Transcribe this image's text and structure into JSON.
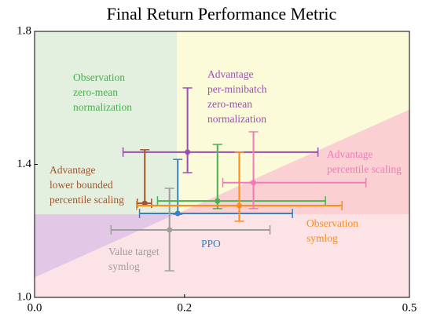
{
  "chart_data": {
    "type": "errorbar_scatter",
    "title": "Final Return Performance Metric",
    "xlim": [
      0,
      0.5
    ],
    "ylim": [
      1.0,
      1.8
    ],
    "xticks": [
      {
        "value": 0,
        "label": "0.0"
      },
      0.2,
      0.5
    ],
    "yticks": [
      {
        "value": 1,
        "label": "1.0"
      },
      1.4,
      1.8
    ],
    "regions": {
      "x_threshold": 0.19,
      "y_threshold": 1.25,
      "diagonal": [
        [
          0,
          1.06
        ],
        [
          0.5,
          1.565
        ]
      ],
      "colors": {
        "upper_left": "#e3efdf",
        "upper_right": "#fbfbd9",
        "lower_right": "#fbd0d3",
        "lower_left": "#e2c8e6",
        "bottom": "#fce3e5"
      }
    },
    "series": [
      {
        "name": [
          "Advantage",
          "per-minibatch",
          "zero-mean",
          "normalization"
        ],
        "color": "#9b4fb0",
        "x": 0.204,
        "y": 1.437,
        "x_low": 0.118,
        "x_high": 0.378,
        "y_low": 1.375,
        "y_high": 1.63
      },
      {
        "name": [
          "Advantage",
          "lower bounded",
          "percentile scaling"
        ],
        "color": "#a0562c",
        "x": 0.147,
        "y": 1.283,
        "x_low": 0.137,
        "x_high": 0.156,
        "y_low": 1.283,
        "y_high": 1.444
      },
      {
        "name": [
          "PPO"
        ],
        "color": "#3a7fc1",
        "x": 0.191,
        "y": 1.2525,
        "x_low": 0.14,
        "x_high": 0.344,
        "y_low": 1.25,
        "y_high": 1.415
      },
      {
        "name": [
          "Value target",
          "symlog"
        ],
        "color": "#9e9e9e",
        "x": 0.18,
        "y": 1.203,
        "x_low": 0.102,
        "x_high": 0.314,
        "y_low": 1.08,
        "y_high": 1.328
      },
      {
        "name": [
          "Observation",
          "zero-mean",
          "normalization"
        ],
        "color": "#4caf50",
        "x": 0.244,
        "y": 1.29,
        "x_low": 0.164,
        "x_high": 0.388,
        "y_low": 1.267,
        "y_high": 1.46
      },
      {
        "name": [
          "Observation",
          "symlog"
        ],
        "color": "#ff8c1a",
        "x": 0.273,
        "y": 1.276,
        "x_low": 0.136,
        "x_high": 0.41,
        "y_low": 1.229,
        "y_high": 1.437
      },
      {
        "name": [
          "Advantage",
          "percentile scaling"
        ],
        "color": "#f27ab8",
        "x": 0.292,
        "y": 1.345,
        "x_low": 0.251,
        "x_high": 0.442,
        "y_low": 1.267,
        "y_high": 1.498
      }
    ]
  }
}
